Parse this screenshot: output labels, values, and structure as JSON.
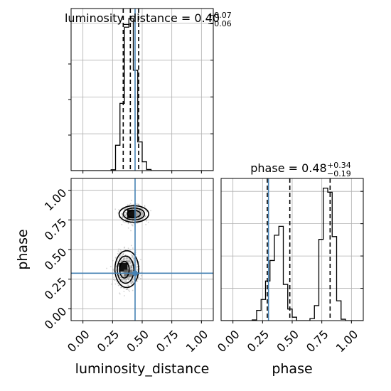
{
  "chart_data": [
    {
      "type": "histogram",
      "panel": "top-left",
      "parameter": "luminosity_distance",
      "title": {
        "name": "luminosity_distance",
        "median": "0.40",
        "plus": "+0.07",
        "minus": "−0.06"
      },
      "xlim": [
        -0.1,
        1.1
      ],
      "bin_edges": [
        -0.1,
        -0.0625,
        -0.025,
        0.0125,
        0.05,
        0.0875,
        0.125,
        0.1625,
        0.2,
        0.2375,
        0.275,
        0.3125,
        0.35,
        0.3875,
        0.425,
        0.4625,
        0.5,
        0.5375,
        0.575,
        0.6125,
        0.65,
        0.6875,
        0.725,
        0.7625,
        0.8,
        0.8375,
        0.875,
        0.9125,
        0.95,
        0.9875,
        1.025,
        1.0625,
        1.1
      ],
      "counts": [
        0,
        0,
        0,
        0,
        0,
        0,
        0,
        0,
        0,
        0.04,
        1.15,
        3.05,
        6.5,
        6.9,
        4.55,
        1.3,
        0.4,
        0.05,
        0,
        0,
        0,
        0,
        0,
        0,
        0,
        0,
        0,
        0,
        0,
        0,
        0,
        0
      ],
      "ymax": 7.2,
      "quantile_lines": [
        0.34,
        0.4,
        0.47
      ],
      "truth": 0.44,
      "grid": true,
      "colors": {
        "hist": "#000000",
        "quantile": "#000000",
        "truth": "#4682b4",
        "grid": "#b0b0b0"
      }
    },
    {
      "type": "histogram",
      "panel": "bottom-right",
      "parameter": "phase",
      "title": {
        "name": "phase",
        "median": "0.48",
        "plus": "+0.34",
        "minus": "−0.19"
      },
      "xlim": [
        -0.1,
        1.1
      ],
      "xticks": [
        "0.00",
        "0.25",
        "0.50",
        "0.75",
        "1.00"
      ],
      "xlabel": "phase",
      "bin_edges": [
        -0.1,
        -0.0625,
        -0.025,
        0.0125,
        0.05,
        0.0875,
        0.125,
        0.1625,
        0.2,
        0.2375,
        0.275,
        0.3125,
        0.35,
        0.3875,
        0.425,
        0.4625,
        0.5,
        0.5375,
        0.575,
        0.6125,
        0.65,
        0.6875,
        0.725,
        0.7625,
        0.8,
        0.8375,
        0.875,
        0.9125,
        0.95,
        0.9875,
        1.025,
        1.0625,
        1.1
      ],
      "counts": [
        0,
        0,
        0,
        0,
        0,
        0,
        0,
        0.05,
        0.75,
        1.55,
        2.9,
        4.4,
        6.25,
        6.9,
        2.65,
        0.85,
        0.25,
        0,
        0,
        0,
        0.15,
        1.1,
        5.95,
        9.7,
        9.4,
        6.15,
        1.45,
        0.1,
        0,
        0,
        0,
        0
      ],
      "ymax": 10.2,
      "quantile_lines": [
        0.29,
        0.48,
        0.82
      ],
      "truth": 0.3,
      "grid": true,
      "colors": {
        "hist": "#000000",
        "quantile": "#000000",
        "truth": "#4682b4",
        "grid": "#b0b0b0"
      }
    },
    {
      "type": "scatter",
      "panel": "bottom-left",
      "xlim": [
        -0.1,
        1.1
      ],
      "ylim": [
        -0.1,
        1.1
      ],
      "xticks": [
        "0.00",
        "0.25",
        "0.50",
        "0.75",
        "1.00"
      ],
      "yticks": [
        "0.00",
        "0.25",
        "0.50",
        "0.75",
        "1.00"
      ],
      "xlabel": "luminosity_distance",
      "ylabel": "phase",
      "modes": [
        {
          "x": 0.43,
          "y": 0.8,
          "sx": 0.045,
          "sy": 0.035
        },
        {
          "x": 0.37,
          "y": 0.33,
          "sx": 0.045,
          "sy": 0.07
        }
      ],
      "contours": [
        {
          "x": 0.43,
          "y": 0.8,
          "rx": 0.125,
          "ry": 0.07
        },
        {
          "x": 0.43,
          "y": 0.8,
          "rx": 0.09,
          "ry": 0.05
        },
        {
          "x": 0.43,
          "y": 0.8,
          "rx": 0.055,
          "ry": 0.03
        },
        {
          "x": 0.37,
          "y": 0.335,
          "rx": 0.1,
          "ry": 0.155
        },
        {
          "x": 0.36,
          "y": 0.33,
          "rx": 0.07,
          "ry": 0.115
        },
        {
          "x": 0.35,
          "y": 0.33,
          "rx": 0.04,
          "ry": 0.07
        }
      ],
      "dense": [
        {
          "x": 0.41,
          "y": 0.8
        },
        {
          "x": 0.34,
          "y": 0.35
        }
      ],
      "truth": {
        "x": 0.44,
        "y": 0.3
      },
      "grid": true,
      "colors": {
        "points": "#808080",
        "contour": "#000000",
        "truth": "#4682b4",
        "grid": "#b0b0b0"
      }
    }
  ]
}
